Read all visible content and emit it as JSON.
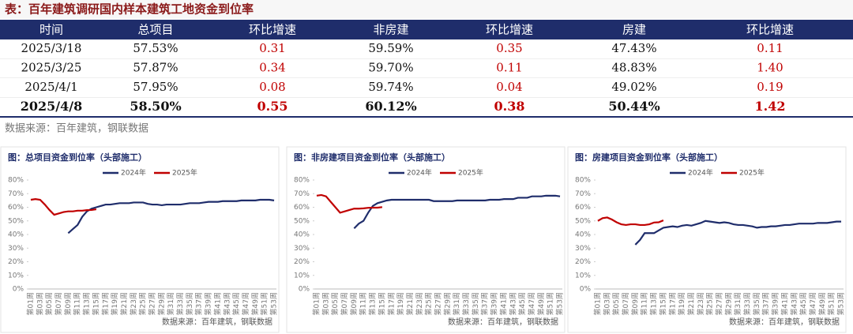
{
  "header": {
    "title": "表：百年建筑调研国内样本建筑工地资金到位率"
  },
  "table": {
    "columns": [
      "时间",
      "总项目",
      "环比增速",
      "非房建",
      "环比增速",
      "房建",
      "环比增速"
    ],
    "rows": [
      [
        "2025/3/18",
        "57.53%",
        "0.31",
        "59.59%",
        "0.35",
        "47.43%",
        "0.11"
      ],
      [
        "2025/3/25",
        "57.87%",
        "0.34",
        "59.70%",
        "0.11",
        "48.83%",
        "1.40"
      ],
      [
        "2025/4/1",
        "57.95%",
        "0.08",
        "59.74%",
        "0.04",
        "49.02%",
        "0.19"
      ],
      [
        "2025/4/8",
        "58.50%",
        "0.55",
        "60.12%",
        "0.38",
        "50.44%",
        "1.42"
      ]
    ]
  },
  "source": "数据来源：百年建筑，钢联数据",
  "chart_data": [
    {
      "type": "line",
      "title": "图：总项目资金到位率（头部施工）",
      "source": "数据来源：百年建筑，钢联数据",
      "categories": [
        "第01周",
        null,
        "第03周",
        null,
        "第05周",
        null,
        "第07周",
        null,
        "第09周",
        null,
        "第11周",
        null,
        "第13周",
        null,
        "第15周",
        null,
        "第17周",
        null,
        "第19周",
        null,
        "第21周",
        null,
        "第23周",
        null,
        "第25周",
        null,
        "第27周",
        null,
        "第29周",
        null,
        "第31周",
        null,
        "第33周",
        null,
        "第35周",
        null,
        "第37周",
        null,
        "第39周",
        null,
        "第41周",
        null,
        "第43周",
        null,
        "第45周",
        null,
        "第47周",
        null,
        "第49周",
        null,
        "第51周",
        null,
        "第53周"
      ],
      "ylim": [
        0,
        80
      ],
      "yticks": [
        {
          "value": 0,
          "label": "0%"
        },
        {
          "value": 10,
          "label": "10%"
        },
        {
          "value": 20,
          "label": "20%"
        },
        {
          "value": 30,
          "label": "30%"
        },
        {
          "value": 40,
          "label": "40%"
        },
        {
          "value": 50,
          "label": "50%"
        },
        {
          "value": 60,
          "label": "60%"
        },
        {
          "value": 70,
          "label": "70%"
        },
        {
          "value": 80,
          "label": "80%"
        }
      ],
      "series": [
        {
          "name": "2024年",
          "color": "#1f2d6b",
          "values": [
            null,
            null,
            null,
            null,
            null,
            null,
            null,
            null,
            41,
            44,
            47,
            53,
            57,
            59,
            60,
            61,
            62,
            62,
            62.5,
            63,
            63,
            63,
            63.5,
            63.5,
            63.5,
            62.5,
            62,
            62,
            61.5,
            62,
            62,
            62,
            62,
            62.5,
            63,
            63,
            63,
            63.5,
            64,
            64,
            64,
            64.5,
            64.5,
            64.5,
            64.5,
            65,
            65,
            65,
            65,
            65.5,
            65.5,
            65.5,
            65
          ]
        },
        {
          "name": "2025年",
          "color": "#c00000",
          "values": [
            65.5,
            66,
            65.5,
            62,
            58,
            54.5,
            55.5,
            56.5,
            57,
            57,
            57.5,
            57.5,
            57.9,
            58,
            58.5,
            null,
            null,
            null,
            null,
            null,
            null,
            null,
            null,
            null,
            null,
            null,
            null,
            null,
            null,
            null,
            null,
            null,
            null,
            null,
            null,
            null,
            null,
            null,
            null,
            null,
            null,
            null,
            null,
            null,
            null,
            null,
            null,
            null,
            null,
            null,
            null,
            null,
            null
          ]
        }
      ]
    },
    {
      "type": "line",
      "title": "图：非房建项目资金到位率（头部施工）",
      "source": "数据来源：百年建筑，钢联数据",
      "categories": [
        "第01周",
        null,
        "第03周",
        null,
        "第05周",
        null,
        "第07周",
        null,
        "第09周",
        null,
        "第11周",
        null,
        "第13周",
        null,
        "第15周",
        null,
        "第17周",
        null,
        "第19周",
        null,
        "第21周",
        null,
        "第23周",
        null,
        "第25周",
        null,
        "第27周",
        null,
        "第29周",
        null,
        "第31周",
        null,
        "第33周",
        null,
        "第35周",
        null,
        "第37周",
        null,
        "第39周",
        null,
        "第41周",
        null,
        "第43周",
        null,
        "第45周",
        null,
        "第47周",
        null,
        "第49周",
        null,
        "第51周",
        null,
        "第53周"
      ],
      "ylim": [
        0,
        80
      ],
      "yticks": [
        {
          "value": 0,
          "label": "0%"
        },
        {
          "value": 10,
          "label": "10%"
        },
        {
          "value": 20,
          "label": "20%"
        },
        {
          "value": 30,
          "label": "30%"
        },
        {
          "value": 40,
          "label": "40%"
        },
        {
          "value": 50,
          "label": "50%"
        },
        {
          "value": 60,
          "label": "60%"
        },
        {
          "value": 70,
          "label": "70%"
        },
        {
          "value": 80,
          "label": "80%"
        }
      ],
      "series": [
        {
          "name": "2024年",
          "color": "#1f2d6b",
          "values": [
            null,
            null,
            null,
            null,
            null,
            null,
            null,
            null,
            44.5,
            48,
            50,
            56,
            61,
            63,
            64,
            65,
            65.5,
            65.5,
            65.5,
            65.5,
            65.5,
            65.5,
            65.5,
            65.5,
            65.5,
            64.5,
            64.5,
            64.5,
            64.5,
            64.5,
            65,
            65,
            65,
            65,
            65,
            65,
            65,
            65.5,
            65.5,
            65.5,
            66,
            66,
            66,
            67,
            67,
            67,
            68,
            68,
            68,
            68.5,
            68.5,
            68.5,
            68
          ]
        },
        {
          "name": "2025年",
          "color": "#c00000",
          "values": [
            68.5,
            69,
            68,
            64,
            60,
            56,
            57,
            58,
            59,
            59,
            59.2,
            59.6,
            59.7,
            59.7,
            60.1,
            null,
            null,
            null,
            null,
            null,
            null,
            null,
            null,
            null,
            null,
            null,
            null,
            null,
            null,
            null,
            null,
            null,
            null,
            null,
            null,
            null,
            null,
            null,
            null,
            null,
            null,
            null,
            null,
            null,
            null,
            null,
            null,
            null,
            null,
            null,
            null,
            null,
            null
          ]
        }
      ]
    },
    {
      "type": "line",
      "title": "图：房建项目资金到位率（头部施工）",
      "source": "数据来源：百年建筑，钢联数据",
      "categories": [
        "第01周",
        null,
        "第03周",
        null,
        "第05周",
        null,
        "第07周",
        null,
        "第09周",
        null,
        "第11周",
        null,
        "第13周",
        null,
        "第15周",
        null,
        "第17周",
        null,
        "第19周",
        null,
        "第21周",
        null,
        "第23周",
        null,
        "第25周",
        null,
        "第27周",
        null,
        "第29周",
        null,
        "第31周",
        null,
        "第33周",
        null,
        "第35周",
        null,
        "第37周",
        null,
        "第39周",
        null,
        "第41周",
        null,
        "第43周",
        null,
        "第45周",
        null,
        "第47周",
        null,
        "第49周",
        null,
        "第51周",
        null,
        "第53周"
      ],
      "ylim": [
        0,
        80
      ],
      "yticks": [
        {
          "value": 0,
          "label": "0%"
        },
        {
          "value": 10,
          "label": "10%"
        },
        {
          "value": 20,
          "label": "20%"
        },
        {
          "value": 30,
          "label": "30%"
        },
        {
          "value": 40,
          "label": "40%"
        },
        {
          "value": 50,
          "label": "50%"
        },
        {
          "value": 60,
          "label": "60%"
        },
        {
          "value": 70,
          "label": "70%"
        },
        {
          "value": 80,
          "label": "80%"
        }
      ],
      "series": [
        {
          "name": "2024年",
          "color": "#1f2d6b",
          "values": [
            null,
            null,
            null,
            null,
            null,
            null,
            null,
            null,
            32.5,
            36,
            41,
            41,
            41,
            43,
            45,
            45.5,
            46,
            45.5,
            46.5,
            47,
            46.5,
            47.5,
            48.5,
            50,
            49.5,
            49,
            48.5,
            49,
            48.5,
            47.5,
            47,
            47,
            46.5,
            46,
            45,
            45.5,
            45.5,
            46,
            46,
            46.5,
            47,
            47,
            47.5,
            48,
            48,
            48,
            48,
            48.5,
            48.5,
            48.5,
            49,
            49.5,
            49.5
          ]
        },
        {
          "name": "2025年",
          "color": "#c00000",
          "values": [
            50,
            52,
            52.5,
            51,
            49,
            47.5,
            47,
            47.5,
            47.5,
            47,
            47,
            47.5,
            48.8,
            49,
            50.4,
            null,
            null,
            null,
            null,
            null,
            null,
            null,
            null,
            null,
            null,
            null,
            null,
            null,
            null,
            null,
            null,
            null,
            null,
            null,
            null,
            null,
            null,
            null,
            null,
            null,
            null,
            null,
            null,
            null,
            null,
            null,
            null,
            null,
            null,
            null,
            null,
            null,
            null
          ]
        }
      ]
    }
  ]
}
